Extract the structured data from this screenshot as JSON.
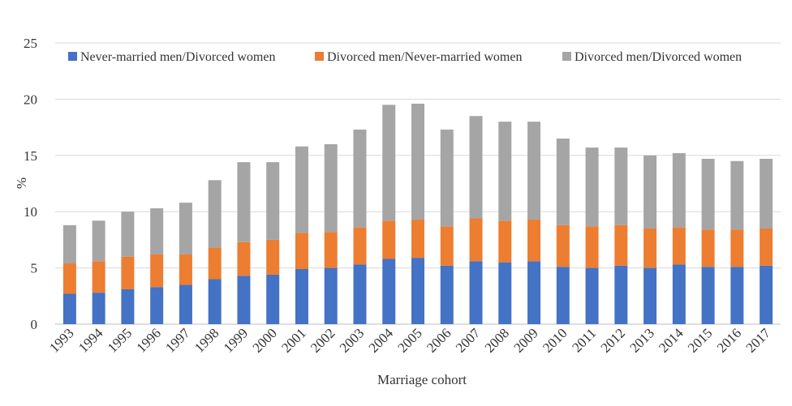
{
  "chart_data": {
    "type": "bar",
    "stacked": true,
    "title": "",
    "xlabel": "Marriage cohort",
    "ylabel": "%",
    "ylim": [
      0,
      25
    ],
    "yticks": [
      "0",
      "5",
      "10",
      "15",
      "20",
      "25"
    ],
    "grid": true,
    "legend_position": "top",
    "categories": [
      "1993",
      "1994",
      "1995",
      "1996",
      "1997",
      "1998",
      "1999",
      "2000",
      "2001",
      "2002",
      "2003",
      "2004",
      "2005",
      "2006",
      "2007",
      "2008",
      "2009",
      "2010",
      "2011",
      "2012",
      "2013",
      "2014",
      "2015",
      "2016",
      "2017"
    ],
    "series": [
      {
        "name": "Never-married men/Divorced women",
        "color": "#4472C4",
        "values": [
          2.7,
          2.8,
          3.1,
          3.3,
          3.5,
          4.0,
          4.3,
          4.4,
          4.9,
          5.0,
          5.3,
          5.8,
          5.9,
          5.2,
          5.6,
          5.5,
          5.6,
          5.1,
          5.0,
          5.2,
          5.0,
          5.3,
          5.1,
          5.1,
          5.2
        ]
      },
      {
        "name": "Divorced men/Never-married women",
        "color": "#ED7D31",
        "values": [
          2.7,
          2.8,
          2.9,
          2.9,
          2.7,
          2.8,
          3.0,
          3.1,
          3.2,
          3.2,
          3.3,
          3.4,
          3.4,
          3.5,
          3.8,
          3.7,
          3.7,
          3.7,
          3.7,
          3.6,
          3.5,
          3.3,
          3.3,
          3.3,
          3.3
        ]
      },
      {
        "name": "Divorced men/Divorced women",
        "color": "#A5A5A5",
        "values": [
          3.4,
          3.6,
          4.0,
          4.1,
          4.6,
          6.0,
          7.1,
          6.9,
          7.7,
          7.8,
          8.7,
          10.3,
          10.3,
          8.6,
          9.1,
          8.8,
          8.7,
          7.7,
          7.0,
          6.9,
          6.5,
          6.6,
          6.3,
          6.1,
          6.2
        ]
      }
    ]
  }
}
